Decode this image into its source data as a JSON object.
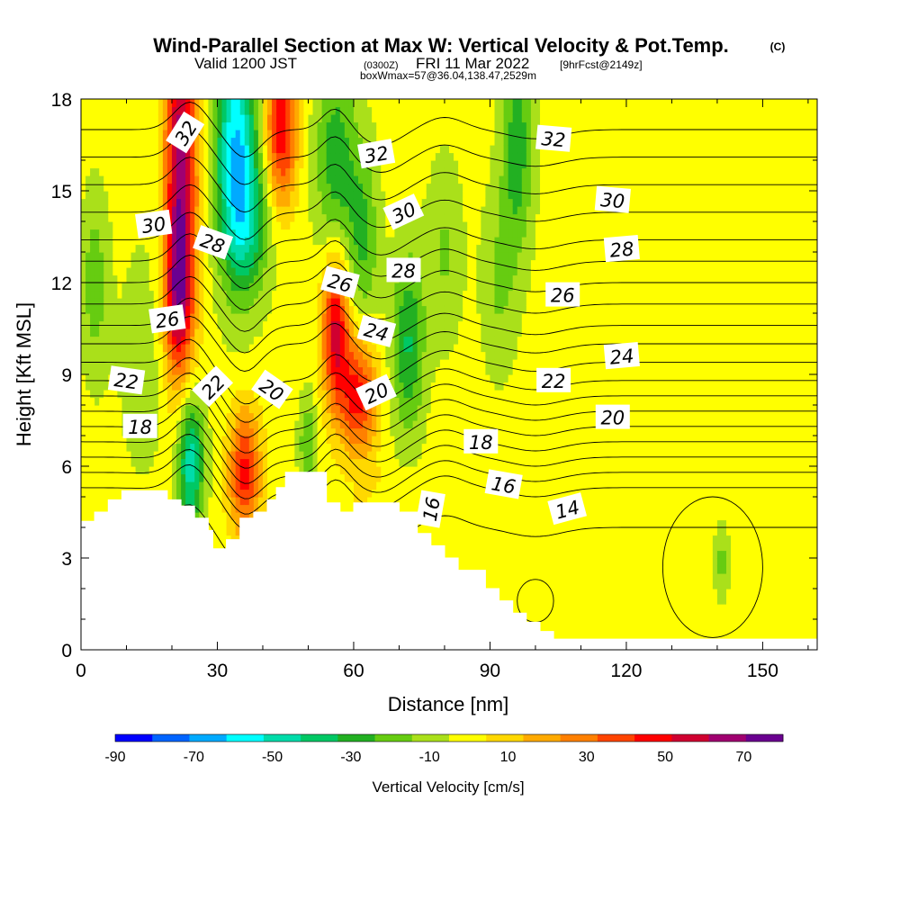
{
  "figure": {
    "title": "Wind-Parallel Section at Max W: Vertical Velocity & Pot.Temp.",
    "copyright": "(C)",
    "valid_prefix": "Valid 1200 JST",
    "valid_utc": "(0300Z)",
    "valid_date": "FRI 11 Mar 2022",
    "forecast": "[9hrFcst@2149z]",
    "box_info": "boxWmax=57@36.04,138.47,2529m"
  },
  "chart_data": {
    "type": "heatmap",
    "title": "Wind-Parallel Section at Max W: Vertical Velocity & Pot.Temp.",
    "xlabel": "Distance [nm]",
    "ylabel": "Height [Kft MSL]",
    "xlim": [
      0,
      162
    ],
    "ylim": [
      0,
      18
    ],
    "xticks": [
      0,
      30,
      60,
      90,
      120,
      150
    ],
    "yticks": [
      0,
      3,
      6,
      9,
      12,
      15,
      18
    ],
    "colorbar": {
      "label": "Vertical Velocity [cm/s]",
      "ticks": [
        -90,
        -70,
        -50,
        -30,
        -10,
        10,
        30,
        50,
        70
      ],
      "boundaries": [
        -90,
        -80,
        -70,
        -60,
        -50,
        -40,
        -30,
        -20,
        -10,
        0,
        10,
        20,
        30,
        40,
        50,
        60,
        70,
        80
      ],
      "colors": [
        "#0000ff",
        "#0064ff",
        "#00aaff",
        "#00ffff",
        "#00dcaa",
        "#00c864",
        "#22b022",
        "#66cc11",
        "#aae01a",
        "#ffff00",
        "#ffd800",
        "#ffaa00",
        "#ff8000",
        "#ff4400",
        "#ff0000",
        "#d00030",
        "#a00070",
        "#6a0090"
      ]
    },
    "terrain_kft": [
      [
        0,
        4.2
      ],
      [
        3,
        4.2
      ],
      [
        3,
        4.5
      ],
      [
        6,
        4.5
      ],
      [
        6,
        4.9
      ],
      [
        9,
        4.9
      ],
      [
        9,
        5.2
      ],
      [
        19,
        5.2
      ],
      [
        19,
        4.9
      ],
      [
        22,
        4.9
      ],
      [
        22,
        4.7
      ],
      [
        25,
        4.7
      ],
      [
        25,
        4.3
      ],
      [
        28,
        4.3
      ],
      [
        28,
        3.9
      ],
      [
        29,
        3.9
      ],
      [
        29,
        3.3
      ],
      [
        32,
        3.3
      ],
      [
        32,
        3.6
      ],
      [
        35,
        3.6
      ],
      [
        35,
        4.3
      ],
      [
        38,
        4.3
      ],
      [
        38,
        4.5
      ],
      [
        41,
        4.5
      ],
      [
        41,
        4.9
      ],
      [
        43,
        4.9
      ],
      [
        43,
        5.3
      ],
      [
        45,
        5.3
      ],
      [
        45,
        5.8
      ],
      [
        54,
        5.8
      ],
      [
        54,
        4.8
      ],
      [
        57,
        4.8
      ],
      [
        57,
        4.5
      ],
      [
        60,
        4.5
      ],
      [
        60,
        4.8
      ],
      [
        70,
        4.8
      ],
      [
        70,
        4.5
      ],
      [
        74,
        4.5
      ],
      [
        74,
        3.8
      ],
      [
        77,
        3.8
      ],
      [
        77,
        3.4
      ],
      [
        80,
        3.4
      ],
      [
        80,
        3.0
      ],
      [
        83,
        3.0
      ],
      [
        83,
        2.6
      ],
      [
        86,
        2.6
      ],
      [
        86,
        2.6
      ],
      [
        89,
        2.6
      ],
      [
        89,
        2.0
      ],
      [
        92,
        2.0
      ],
      [
        92,
        1.6
      ],
      [
        95,
        1.6
      ],
      [
        95,
        1.2
      ],
      [
        98,
        1.2
      ],
      [
        98,
        0.9
      ],
      [
        101,
        0.9
      ],
      [
        101,
        0.6
      ],
      [
        104,
        0.6
      ],
      [
        104,
        0.35
      ],
      [
        162,
        0.35
      ]
    ],
    "velocity_features": [
      {
        "x": 22,
        "z": 15.5,
        "sx": 3.5,
        "sz": 6.5,
        "w": 75
      },
      {
        "x": 21,
        "z": 11.5,
        "sx": 3.0,
        "sz": 2.2,
        "w": 35
      },
      {
        "x": 34,
        "z": 16.5,
        "sx": 4.5,
        "sz": 4.0,
        "w": -60
      },
      {
        "x": 37,
        "z": 14.0,
        "sx": 5.0,
        "sz": 2.5,
        "w": -30
      },
      {
        "x": 44,
        "z": 17.0,
        "sx": 3.5,
        "sz": 2.5,
        "w": 55
      },
      {
        "x": 56,
        "z": 16.0,
        "sx": 4.5,
        "sz": 3.5,
        "w": -30
      },
      {
        "x": 62,
        "z": 13.5,
        "sx": 3.5,
        "sz": 3.0,
        "w": -25
      },
      {
        "x": 56,
        "z": 10.5,
        "sx": 3.0,
        "sz": 2.5,
        "w": 60
      },
      {
        "x": 61,
        "z": 8.3,
        "sx": 4.0,
        "sz": 2.0,
        "w": 50
      },
      {
        "x": 72,
        "z": 10.0,
        "sx": 3.5,
        "sz": 3.0,
        "w": -35
      },
      {
        "x": 80,
        "z": 13.0,
        "sx": 4.0,
        "sz": 3.0,
        "w": -15
      },
      {
        "x": 96,
        "z": 16.5,
        "sx": 3.5,
        "sz": 3.5,
        "w": -30
      },
      {
        "x": 92,
        "z": 12.0,
        "sx": 4.0,
        "sz": 3.0,
        "w": -15
      },
      {
        "x": 24,
        "z": 6.2,
        "sx": 3.0,
        "sz": 2.3,
        "w": -55
      },
      {
        "x": 36,
        "z": 5.8,
        "sx": 3.5,
        "sz": 2.0,
        "w": 50
      },
      {
        "x": 50,
        "z": 6.8,
        "sx": 2.0,
        "sz": 1.5,
        "w": -25
      },
      {
        "x": 14,
        "z": 9.5,
        "sx": 6.0,
        "sz": 4.0,
        "w": -10
      },
      {
        "x": 3,
        "z": 12.0,
        "sx": 3.0,
        "sz": 3.0,
        "w": -20
      },
      {
        "x": 141,
        "z": 2.9,
        "sx": 2.0,
        "sz": 1.5,
        "w": -20
      }
    ],
    "theta_contours": {
      "levels": [
        14,
        15,
        16,
        17,
        18,
        19,
        20,
        21,
        22,
        23,
        24,
        25,
        26,
        27,
        28,
        29,
        30,
        31,
        32,
        33
      ],
      "base_heights_kft": [
        4.0,
        5.3,
        5.8,
        6.3,
        6.8,
        7.3,
        7.8,
        8.3,
        8.8,
        9.4,
        10.0,
        10.6,
        11.3,
        12.0,
        12.7,
        13.4,
        14.3,
        15.2,
        16.1,
        17.0
      ],
      "labels": [
        {
          "text": "32",
          "x": 23,
          "z": 16.9,
          "angle": -58
        },
        {
          "text": "30",
          "x": 16,
          "z": 13.9,
          "angle": -8
        },
        {
          "text": "28",
          "x": 29,
          "z": 13.3,
          "angle": 20
        },
        {
          "text": "26",
          "x": 19,
          "z": 10.8,
          "angle": -8
        },
        {
          "text": "22",
          "x": 10,
          "z": 8.8,
          "angle": 8
        },
        {
          "text": "22",
          "x": 29,
          "z": 8.6,
          "angle": -45
        },
        {
          "text": "20",
          "x": 42,
          "z": 8.5,
          "angle": 35
        },
        {
          "text": "18",
          "x": 13,
          "z": 7.3,
          "angle": 0
        },
        {
          "text": "32",
          "x": 65,
          "z": 16.2,
          "angle": -10
        },
        {
          "text": "30",
          "x": 71,
          "z": 14.3,
          "angle": -25
        },
        {
          "text": "26",
          "x": 57,
          "z": 12.0,
          "angle": 15
        },
        {
          "text": "28",
          "x": 71,
          "z": 12.4,
          "angle": 0
        },
        {
          "text": "24",
          "x": 65,
          "z": 10.4,
          "angle": 15
        },
        {
          "text": "20",
          "x": 65,
          "z": 8.4,
          "angle": -25
        },
        {
          "text": "18",
          "x": 88,
          "z": 6.8,
          "angle": 0
        },
        {
          "text": "16",
          "x": 77,
          "z": 4.6,
          "angle": -80
        },
        {
          "text": "16",
          "x": 93,
          "z": 5.4,
          "angle": 10
        },
        {
          "text": "14",
          "x": 107,
          "z": 4.6,
          "angle": -15
        },
        {
          "text": "32",
          "x": 104,
          "z": 16.7,
          "angle": 5
        },
        {
          "text": "30",
          "x": 117,
          "z": 14.7,
          "angle": 5
        },
        {
          "text": "28",
          "x": 119,
          "z": 13.1,
          "angle": -5
        },
        {
          "text": "26",
          "x": 106,
          "z": 11.6,
          "angle": 0
        },
        {
          "text": "22",
          "x": 104,
          "z": 8.8,
          "angle": 0
        },
        {
          "text": "24",
          "x": 119,
          "z": 9.6,
          "angle": -5
        },
        {
          "text": "20",
          "x": 117,
          "z": 7.6,
          "angle": 0
        }
      ]
    },
    "grid": false,
    "legend": "colorbar-bottom"
  }
}
